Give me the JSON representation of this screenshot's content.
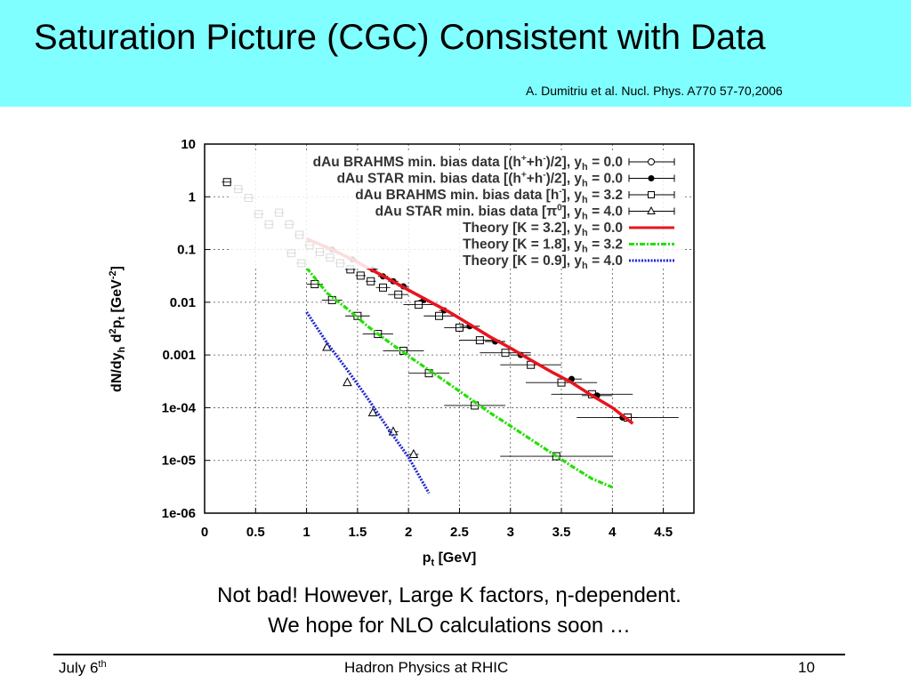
{
  "slide": {
    "title": "Saturation Picture (CGC) Consistent with Data",
    "citation": "A. Dumitriu et al. Nucl. Phys. A770 57-70,2006",
    "caption_line1": "Not bad! However, Large K factors, η-dependent.",
    "caption_line2": "We hope for NLO calculations soon …",
    "footer_left": "July 6",
    "footer_left_sup": "th",
    "footer_center": "Hadron Physics at RHIC",
    "footer_right": "10"
  },
  "colors": {
    "header_bg": "#7fffff",
    "red": "#e8141e",
    "green": "#22e000",
    "blue": "#1e28d2"
  },
  "chart_data": {
    "type": "scatter",
    "xlabel": "p",
    "xlabel_sub": "t",
    "xlabel_unit": " [GeV]",
    "ylabel_main": "dN/dy",
    "ylabel_sub1": "h",
    "ylabel_mid": " d",
    "ylabel_sup1": "2",
    "ylabel_p": "p",
    "ylabel_sub2": "t",
    "ylabel_unit": " [GeV",
    "ylabel_sup2": "-2",
    "ylabel_end": "]",
    "xlim": [
      0,
      4.8
    ],
    "ylim": [
      1e-06,
      10
    ],
    "ylog": true,
    "grid": true,
    "legend_position": "top-right",
    "xticks": [
      {
        "v": 0,
        "label": "0"
      },
      {
        "v": 0.5,
        "label": "0.5"
      },
      {
        "v": 1,
        "label": "1"
      },
      {
        "v": 1.5,
        "label": "1.5"
      },
      {
        "v": 2,
        "label": "2"
      },
      {
        "v": 2.5,
        "label": "2.5"
      },
      {
        "v": 3,
        "label": "3"
      },
      {
        "v": 3.5,
        "label": "3.5"
      },
      {
        "v": 4,
        "label": "4"
      },
      {
        "v": 4.5,
        "label": "4.5"
      }
    ],
    "yticks": [
      {
        "v": 10,
        "label": "10"
      },
      {
        "v": 1,
        "label": "1"
      },
      {
        "v": 0.1,
        "label": "0.1"
      },
      {
        "v": 0.01,
        "label": "0.01"
      },
      {
        "v": 0.001,
        "label": "0.001"
      },
      {
        "v": 0.0001,
        "label": "1e-04"
      },
      {
        "v": 1e-05,
        "label": "1e-05"
      },
      {
        "v": 1e-06,
        "label": "1e-06"
      }
    ],
    "legend": [
      {
        "text": "dAu BRAHMS min. bias data [(h",
        "sup": "+",
        "mid": "+h",
        "sup2": "-",
        "end": ")/2], y",
        "sub": "h",
        "tail": " = 0.0",
        "sym": "circle"
      },
      {
        "text": "dAu STAR min. bias data [(h",
        "sup": "+",
        "mid": "+h",
        "sup2": "-",
        "end": ")/2], y",
        "sub": "h",
        "tail": " = 0.0",
        "sym": "dot"
      },
      {
        "text": "dAu BRAHMS min. bias data [h",
        "sup": "-",
        "mid": "",
        "sup2": "",
        "end": "], y",
        "sub": "h",
        "tail": " = 3.2",
        "sym": "square"
      },
      {
        "text": "dAu STAR min. bias data [π",
        "sup": "0",
        "mid": "",
        "sup2": "",
        "end": "], y",
        "sub": "h",
        "tail": " = 4.0",
        "sym": "triangle"
      },
      {
        "text": "Theory [K = 3.2], y",
        "sup": "",
        "mid": "",
        "sup2": "",
        "end": "",
        "sub": "h",
        "tail": " = 0.0",
        "sym": "red"
      },
      {
        "text": "Theory [K = 1.8], y",
        "sup": "",
        "mid": "",
        "sup2": "",
        "end": "",
        "sub": "h",
        "tail": " = 3.2",
        "sym": "green"
      },
      {
        "text": "Theory [K = 0.9], y",
        "sup": "",
        "mid": "",
        "sup2": "",
        "end": "",
        "sub": "h",
        "tail": " = 4.0",
        "sym": "blue"
      }
    ],
    "series": [
      {
        "name": "dAu BRAHMS min. bias data [(h+ +h-)/2], yh = 0.0",
        "marker": "square",
        "points": [
          [
            0.22,
            1.9,
            0.05
          ],
          [
            0.33,
            1.4,
            0.05
          ],
          [
            0.43,
            0.95,
            0.05
          ],
          [
            0.53,
            0.47,
            0.05
          ],
          [
            0.63,
            0.3,
            0.05
          ],
          [
            0.73,
            0.5,
            0.05
          ],
          [
            0.83,
            0.3,
            0.05
          ],
          [
            0.93,
            0.19,
            0.05
          ],
          [
            1.03,
            0.12,
            0.05
          ],
          [
            1.13,
            0.09,
            0.05
          ],
          [
            1.23,
            0.07,
            0.05
          ],
          [
            1.33,
            0.055,
            0.05
          ],
          [
            1.43,
            0.042,
            0.05
          ],
          [
            1.53,
            0.032,
            0.05
          ],
          [
            1.63,
            0.025,
            0.05
          ],
          [
            1.75,
            0.019,
            0.07
          ],
          [
            1.9,
            0.014,
            0.1
          ],
          [
            2.1,
            0.009,
            0.15
          ],
          [
            2.3,
            0.0055,
            0.15
          ],
          [
            2.5,
            0.0033,
            0.15
          ],
          [
            2.7,
            0.0019,
            0.2
          ],
          [
            2.95,
            0.0011,
            0.25
          ],
          [
            3.2,
            0.00065,
            0.3
          ],
          [
            3.5,
            0.0003,
            0.35
          ],
          [
            3.8,
            0.00018,
            0.4
          ],
          [
            4.15,
            6.5e-05,
            0.5
          ]
        ]
      },
      {
        "name": "dAu BRAHMS min. bias data [h-], yh = 3.2",
        "marker": "square",
        "points": [
          [
            0.85,
            0.085,
            0.05
          ],
          [
            0.95,
            0.055,
            0.05
          ],
          [
            1.08,
            0.022,
            0.08
          ],
          [
            1.25,
            0.011,
            0.1
          ],
          [
            1.5,
            0.0055,
            0.12
          ],
          [
            1.7,
            0.0025,
            0.15
          ],
          [
            1.95,
            0.0012,
            0.2
          ],
          [
            2.2,
            0.00045,
            0.2
          ],
          [
            2.65,
            0.00011,
            0.3
          ],
          [
            3.45,
            1.2e-05,
            0.55
          ]
        ]
      },
      {
        "name": "dAu STAR min. bias data [(h+ +h-)/2], yh = 0.0",
        "marker": "dot",
        "points": [
          [
            1.25,
            0.1,
            0.05
          ],
          [
            1.45,
            0.065,
            0.05
          ],
          [
            1.65,
            0.042,
            0.05
          ],
          [
            1.75,
            0.031,
            0.05
          ],
          [
            1.85,
            0.025,
            0.05
          ],
          [
            1.95,
            0.02,
            0.05
          ],
          [
            2.15,
            0.011,
            0.05
          ],
          [
            2.35,
            0.007,
            0.05
          ],
          [
            2.6,
            0.0035,
            0.1
          ],
          [
            2.85,
            0.0018,
            0.1
          ],
          [
            3.1,
            0.001,
            0.1
          ],
          [
            3.6,
            0.00035,
            0.1
          ],
          [
            3.85,
            0.00017,
            0.15
          ],
          [
            4.1,
            6.5e-05,
            0.15
          ]
        ]
      },
      {
        "name": "dAu STAR min. bias data [π0], yh = 4.0",
        "marker": "triangle",
        "points": [
          [
            1.2,
            0.0014,
            0.03
          ],
          [
            1.4,
            0.0003,
            0.03
          ],
          [
            1.65,
            8e-05,
            0.03
          ],
          [
            1.85,
            3.5e-05,
            0.05
          ],
          [
            2.05,
            1.3e-05,
            0.05
          ]
        ]
      },
      {
        "name": "Theory [K = 3.2], yh = 0.0",
        "line": "red",
        "points": [
          [
            1.0,
            0.16
          ],
          [
            1.2,
            0.11
          ],
          [
            1.4,
            0.072
          ],
          [
            1.6,
            0.045
          ],
          [
            1.8,
            0.028
          ],
          [
            2.0,
            0.017
          ],
          [
            2.2,
            0.0105
          ],
          [
            2.4,
            0.0065
          ],
          [
            2.6,
            0.0038
          ],
          [
            2.8,
            0.0022
          ],
          [
            3.0,
            0.00135
          ],
          [
            3.2,
            0.0008
          ],
          [
            3.4,
            0.00048
          ],
          [
            3.6,
            0.0003
          ],
          [
            3.8,
            0.00017
          ],
          [
            4.0,
            0.0001
          ],
          [
            4.2,
            5e-05
          ]
        ]
      },
      {
        "name": "Theory [K = 1.8], yh = 3.2",
        "line": "green",
        "points": [
          [
            1.0,
            0.045
          ],
          [
            1.2,
            0.015
          ],
          [
            1.4,
            0.0075
          ],
          [
            1.6,
            0.0035
          ],
          [
            1.8,
            0.0018
          ],
          [
            2.0,
            0.00095
          ],
          [
            2.2,
            0.00052
          ],
          [
            2.4,
            0.00028
          ],
          [
            2.6,
            0.00015
          ],
          [
            2.8,
            8e-05
          ],
          [
            3.0,
            4.5e-05
          ],
          [
            3.2,
            2.5e-05
          ],
          [
            3.4,
            1.4e-05
          ],
          [
            3.6,
            7.8e-06
          ],
          [
            3.8,
            4.5e-06
          ],
          [
            4.0,
            3.1e-06
          ]
        ]
      },
      {
        "name": "Theory [K = 0.9], yh = 4.0",
        "line": "blue",
        "points": [
          [
            1.0,
            0.0065
          ],
          [
            1.2,
            0.0017
          ],
          [
            1.4,
            0.00052
          ],
          [
            1.6,
            0.00015
          ],
          [
            1.8,
            4e-05
          ],
          [
            2.0,
            1.15e-05
          ],
          [
            2.2,
            2.4e-06
          ]
        ]
      }
    ]
  }
}
